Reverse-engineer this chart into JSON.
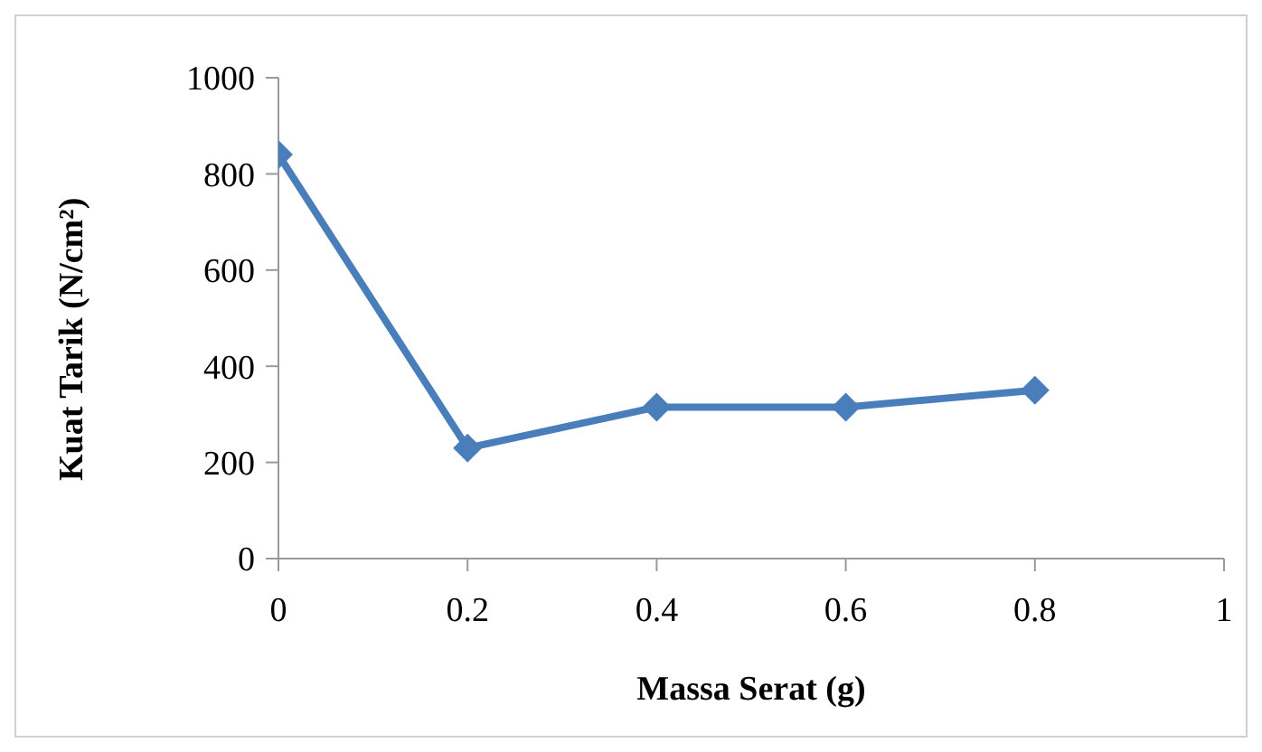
{
  "chart_data": {
    "type": "line",
    "xlabel": "Massa Serat (g)",
    "ylabel": "Kuat Tarik (N/cm²)",
    "x": [
      0,
      0.2,
      0.4,
      0.6,
      0.8
    ],
    "series": [
      {
        "color": "#4a7ebb",
        "values": [
          840,
          230,
          315,
          315,
          350
        ]
      }
    ],
    "xlim": [
      0,
      1
    ],
    "xticks": [
      0,
      0.2,
      0.4,
      0.6,
      0.8,
      1
    ],
    "ylim": [
      0,
      1000
    ],
    "yticks": [
      0,
      200,
      400,
      600,
      800,
      1000
    ],
    "grid": false,
    "legend": false,
    "marker": "diamond",
    "line_style": "solid"
  }
}
